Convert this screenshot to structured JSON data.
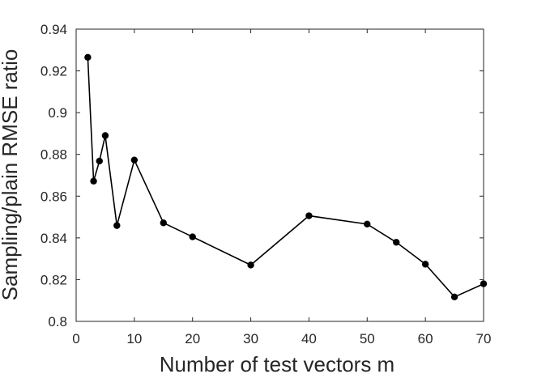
{
  "chart_data": {
    "type": "line",
    "title": "",
    "xlabel": "Number of test vectors m",
    "ylabel": "Sampling/plain RMSE ratio",
    "xlim": [
      0,
      70
    ],
    "ylim": [
      0.8,
      0.94
    ],
    "xticks": [
      0,
      10,
      20,
      30,
      40,
      50,
      60,
      70
    ],
    "yticks": [
      0.8,
      0.82,
      0.84,
      0.86,
      0.88,
      0.9,
      0.92,
      0.94
    ],
    "xtick_labels": [
      "0",
      "10",
      "20",
      "30",
      "40",
      "50",
      "60",
      "70"
    ],
    "ytick_labels": [
      "0.8",
      "0.82",
      "0.84",
      "0.86",
      "0.88",
      "0.9",
      "0.92",
      "0.94"
    ],
    "grid": false,
    "series": [
      {
        "x": [
          2,
          3,
          4,
          5,
          7,
          10,
          15,
          20,
          30,
          40,
          50,
          55,
          60,
          65,
          70
        ],
        "y": [
          0.9265,
          0.8672,
          0.8768,
          0.889,
          0.8459,
          0.8773,
          0.8472,
          0.8405,
          0.827,
          0.8506,
          0.8466,
          0.8379,
          0.8274,
          0.8117,
          0.818
        ],
        "color": "#000000",
        "marker": "circle"
      }
    ]
  }
}
